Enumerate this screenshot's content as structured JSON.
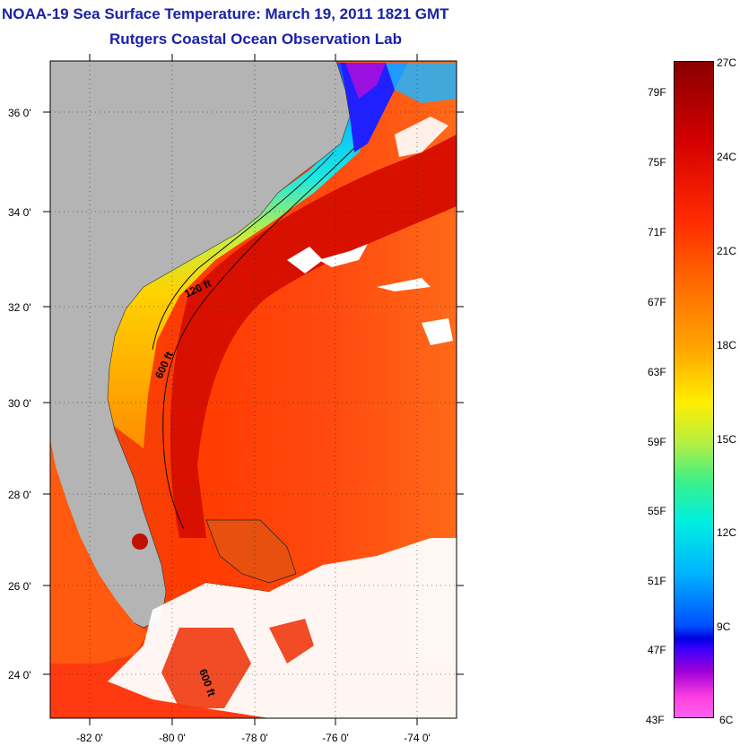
{
  "header": {
    "title": "NOAA-19 Sea Surface Temperature:  March 19, 2011 1821 GMT",
    "subtitle": "Rutgers Coastal Ocean Observation Lab"
  },
  "map": {
    "lat_ticks": [
      "36 0'",
      "34 0'",
      "32 0'",
      "30 0'",
      "28 0'",
      "26 0'",
      "24 0'"
    ],
    "lon_ticks": [
      "-82 0'",
      "-80 0'",
      "-78 0'",
      "-76 0'",
      "-74 0'"
    ],
    "isobath_labels": [
      "120 ft",
      "600 ft",
      "600 ft"
    ]
  },
  "colorbar": {
    "fahrenheit": [
      "79F",
      "75F",
      "71F",
      "67F",
      "63F",
      "59F",
      "55F",
      "51F",
      "47F",
      "43F"
    ],
    "celsius": [
      "27C",
      "24C",
      "21C",
      "18C",
      "15C",
      "12C",
      "9C",
      "6C"
    ]
  },
  "colors": {
    "title": "#1a22a8",
    "land": "#b4b4b4",
    "cloud": "#ffffff",
    "warm": "#e01a00",
    "cool": "#00c8ff"
  }
}
